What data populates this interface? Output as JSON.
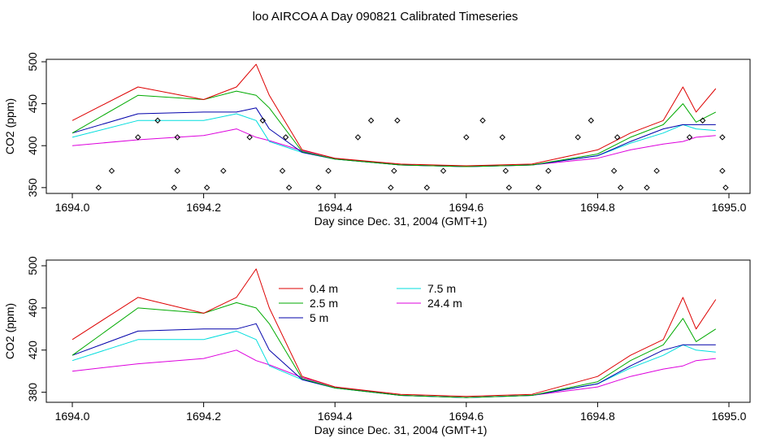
{
  "figure": {
    "title": "loo AIRCOA A  Day 090821  Calibrated Timeseries"
  },
  "series_colors": {
    "0.4 m": "#dd0000",
    "2.5 m": "#00aa00",
    "5 m": "#0000aa",
    "7.5 m": "#00dddd",
    "24.4 m": "#dd00dd",
    "flags": "#000000"
  },
  "chart_data": [
    {
      "type": "line",
      "xlabel": "Day since Dec. 31, 2004 (GMT+1)",
      "ylabel": "CO2 (ppm)",
      "xlim": [
        1694.0,
        1695.0
      ],
      "ylim": [
        345,
        500
      ],
      "xticks": [
        1694.0,
        1694.2,
        1694.4,
        1694.6,
        1694.8,
        1695.0
      ],
      "xtick_labels": [
        "1694.0",
        "1694.2",
        "1694.4",
        "1694.6",
        "1694.8",
        "1695.0"
      ],
      "yticks": [
        350,
        400,
        450,
        500
      ],
      "ytick_labels": [
        "350",
        "400",
        "450",
        "500"
      ],
      "legend": "none",
      "grid": false,
      "x": [
        1694.0,
        1694.1,
        1694.2,
        1694.25,
        1694.28,
        1694.3,
        1694.35,
        1694.4,
        1694.5,
        1694.6,
        1694.7,
        1694.8,
        1694.85,
        1694.9,
        1694.93,
        1694.95,
        1694.98
      ],
      "series": [
        {
          "name": "0.4 m",
          "values": [
            430,
            470,
            455,
            470,
            497,
            460,
            395,
            385,
            378,
            376,
            378,
            395,
            415,
            430,
            470,
            440,
            468
          ]
        },
        {
          "name": "2.5 m",
          "values": [
            415,
            460,
            455,
            465,
            460,
            445,
            393,
            384,
            377,
            375,
            377,
            390,
            410,
            425,
            450,
            428,
            440
          ]
        },
        {
          "name": "5 m",
          "values": [
            415,
            438,
            440,
            440,
            445,
            420,
            392,
            384,
            377,
            375,
            377,
            388,
            405,
            420,
            425,
            425,
            425
          ]
        },
        {
          "name": "7.5 m",
          "values": [
            410,
            430,
            430,
            438,
            430,
            405,
            392,
            384,
            377,
            375,
            377,
            388,
            403,
            415,
            425,
            420,
            418
          ]
        },
        {
          "name": "24.4 m",
          "values": [
            400,
            407,
            412,
            420,
            410,
            406,
            394,
            385,
            377,
            375,
            377,
            385,
            395,
            402,
            405,
            410,
            412
          ]
        }
      ],
      "flag_points": {
        "x": [
          1694.04,
          1694.06,
          1694.1,
          1694.13,
          1694.155,
          1694.16,
          1694.16,
          1694.205,
          1694.23,
          1694.27,
          1694.29,
          1694.32,
          1694.325,
          1694.33,
          1694.375,
          1694.39,
          1694.435,
          1694.455,
          1694.485,
          1694.49,
          1694.495,
          1694.54,
          1694.565,
          1694.6,
          1694.625,
          1694.655,
          1694.66,
          1694.665,
          1694.71,
          1694.725,
          1694.77,
          1694.79,
          1694.825,
          1694.83,
          1694.835,
          1694.875,
          1694.89,
          1694.94,
          1694.96,
          1694.99,
          1694.99,
          1694.995
        ],
        "y": [
          350,
          370,
          410,
          430,
          350,
          370,
          410,
          350,
          370,
          410,
          430,
          370,
          410,
          350,
          350,
          370,
          410,
          430,
          350,
          370,
          430,
          350,
          370,
          410,
          430,
          410,
          370,
          350,
          350,
          370,
          410,
          430,
          370,
          410,
          350,
          350,
          370,
          410,
          430,
          370,
          410,
          350
        ]
      }
    },
    {
      "type": "line",
      "xlabel": "Day since Dec. 31, 2004 (GMT+1)",
      "ylabel": "CO2 (ppm)",
      "xlim": [
        1694.0,
        1695.0
      ],
      "ylim": [
        372,
        500
      ],
      "xticks": [
        1694.0,
        1694.2,
        1694.4,
        1694.6,
        1694.8,
        1695.0
      ],
      "xtick_labels": [
        "1694.0",
        "1694.2",
        "1694.4",
        "1694.6",
        "1694.8",
        "1695.0"
      ],
      "yticks": [
        380,
        420,
        460,
        500
      ],
      "ytick_labels": [
        "380",
        "420",
        "460",
        "500"
      ],
      "legend": "top-center",
      "grid": false,
      "x": [
        1694.0,
        1694.1,
        1694.2,
        1694.25,
        1694.28,
        1694.3,
        1694.35,
        1694.4,
        1694.5,
        1694.6,
        1694.7,
        1694.8,
        1694.85,
        1694.9,
        1694.93,
        1694.95,
        1694.98
      ],
      "series": [
        {
          "name": "0.4 m",
          "values": [
            430,
            470,
            455,
            470,
            497,
            460,
            395,
            385,
            378,
            376,
            378,
            395,
            415,
            430,
            470,
            440,
            468
          ]
        },
        {
          "name": "2.5 m",
          "values": [
            415,
            460,
            455,
            465,
            460,
            445,
            393,
            384,
            377,
            375,
            377,
            390,
            410,
            425,
            450,
            428,
            440
          ]
        },
        {
          "name": "5 m",
          "values": [
            415,
            438,
            440,
            440,
            445,
            420,
            392,
            384,
            377,
            375,
            377,
            388,
            405,
            420,
            425,
            425,
            425
          ]
        },
        {
          "name": "7.5 m",
          "values": [
            410,
            430,
            430,
            438,
            430,
            405,
            392,
            384,
            377,
            375,
            377,
            388,
            403,
            415,
            425,
            420,
            418
          ]
        },
        {
          "name": "24.4 m",
          "values": [
            400,
            407,
            412,
            420,
            410,
            406,
            394,
            385,
            377,
            375,
            377,
            385,
            395,
            402,
            405,
            410,
            412
          ]
        }
      ]
    }
  ]
}
